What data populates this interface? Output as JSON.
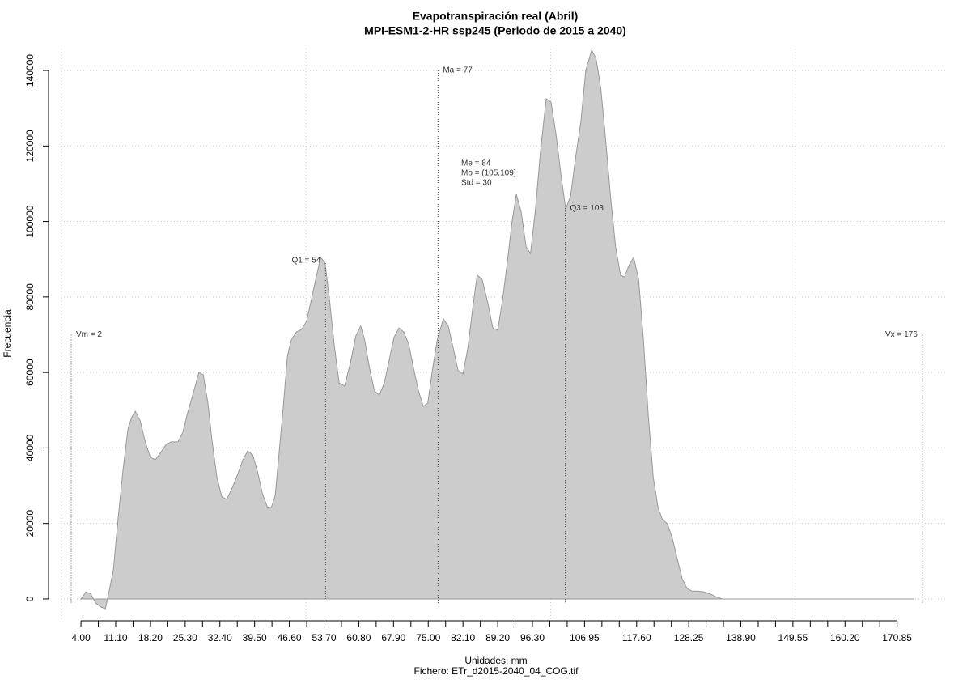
{
  "chart_data": {
    "type": "area",
    "title": "Evapotranspiración real (Abril)",
    "subtitle": "MPI-ESM1-2-HR ssp245 (Periodo de 2015 a 2040)",
    "x_label": "Unidades: mm",
    "caption": "Fichero: ETr_d2015-2040_04_COG.tif",
    "y_label": "Frecuencia",
    "color": "#cccccc",
    "stroke": "#999999",
    "xlim": [
      -2.3,
      181
    ],
    "ylim": [
      -5800,
      145800
    ],
    "yticks": [
      0,
      20000,
      40000,
      60000,
      80000,
      100000,
      120000,
      140000
    ],
    "xticks": [
      {
        "value": 4,
        "label": "4.00"
      },
      {
        "value": 11.1,
        "label": "11.10"
      },
      {
        "value": 18.2,
        "label": "18.20"
      },
      {
        "value": 25.3,
        "label": "25.30"
      },
      {
        "value": 32.4,
        "label": "32.40"
      },
      {
        "value": 39.5,
        "label": "39.50"
      },
      {
        "value": 46.6,
        "label": "46.60"
      },
      {
        "value": 53.7,
        "label": "53.70"
      },
      {
        "value": 60.8,
        "label": "60.80"
      },
      {
        "value": 67.9,
        "label": "67.90"
      },
      {
        "value": 75,
        "label": "75.00"
      },
      {
        "value": 82.1,
        "label": "82.10"
      },
      {
        "value": 89.2,
        "label": "89.20"
      },
      {
        "value": 96.3,
        "label": "96.30"
      },
      {
        "value": 106.95,
        "label": "106.95"
      },
      {
        "value": 117.6,
        "label": "117.60"
      },
      {
        "value": 128.25,
        "label": "128.25"
      },
      {
        "value": 138.9,
        "label": "138.90"
      },
      {
        "value": 149.55,
        "label": "149.55"
      },
      {
        "value": 160.2,
        "label": "160.20"
      },
      {
        "value": 170.85,
        "label": "170.85"
      }
    ],
    "xminorticks": [
      7.55,
      14.65,
      21.75,
      28.85,
      35.95,
      43.05,
      50.15,
      57.25,
      64.35,
      71.45,
      78.55,
      85.65,
      92.75,
      99.85,
      103.4,
      110.5,
      114.05,
      121.15,
      124.7,
      131.8,
      135.35,
      142.45,
      146,
      153.1,
      156.65,
      163.75,
      167.3
    ],
    "xgrid": [
      0,
      50,
      100,
      150
    ],
    "grid": true,
    "x": [
      4.0,
      5.0,
      6.0,
      7.0,
      8.0,
      9.0,
      9.6,
      10.6,
      11.6,
      12.6,
      13.6,
      14.4,
      15.1,
      16.1,
      17.1,
      18.2,
      19.2,
      20.2,
      21.4,
      22.5,
      23.8,
      24.8,
      25.8,
      27.2,
      28.1,
      29.0,
      30.0,
      30.8,
      31.8,
      32.8,
      33.8,
      34.9,
      36.1,
      37.1,
      38.1,
      39.1,
      40.1,
      41.1,
      42.1,
      42.9,
      43.7,
      44.5,
      45.4,
      46.2,
      47.0,
      48.0,
      49.1,
      50.1,
      51.1,
      52.0,
      53.0,
      53.9,
      54.8,
      55.8,
      56.8,
      57.9,
      59.1,
      60.2,
      61.2,
      62.0,
      63.0,
      64.0,
      65.0,
      66.0,
      67.0,
      68.0,
      69.0,
      70.0,
      71.0,
      72.0,
      73.0,
      74.0,
      74.9,
      75.9,
      76.9,
      78.1,
      79.1,
      80.1,
      81.1,
      82.1,
      83.1,
      84.1,
      85.0,
      86.0,
      87.2,
      88.2,
      89.2,
      90.2,
      91.2,
      92.1,
      93.0,
      94.0,
      95.0,
      95.9,
      96.9,
      97.9,
      99.1,
      100.1,
      101.1,
      102.1,
      103.1,
      104.1,
      105.0,
      106.2,
      107.2,
      108.4,
      109.3,
      110.3,
      111.3,
      112.3,
      113.3,
      114.3,
      115.1,
      116.0,
      117.0,
      118.0,
      119.0,
      120.0,
      121.0,
      122.0,
      122.9,
      123.9,
      124.9,
      125.9,
      126.9,
      127.9,
      128.9,
      130.0,
      131.3,
      132.7,
      133.8,
      135.1,
      141.3,
      174.3
    ],
    "values": [
      0,
      1900,
      1300,
      -1100,
      -2100,
      -2600,
      1100,
      7500,
      21400,
      34300,
      45000,
      48200,
      49700,
      47200,
      41800,
      37500,
      36900,
      38600,
      40900,
      41600,
      41600,
      44000,
      49300,
      55700,
      60000,
      59400,
      51500,
      41800,
      32200,
      27000,
      26400,
      29400,
      33200,
      36900,
      39200,
      38200,
      33700,
      27900,
      24400,
      24200,
      27400,
      38600,
      51500,
      64300,
      68600,
      70700,
      71400,
      73500,
      79300,
      84700,
      90500,
      89000,
      79300,
      67000,
      57200,
      56400,
      62600,
      69700,
      72300,
      68600,
      61100,
      55100,
      54000,
      57200,
      63200,
      69300,
      71800,
      70700,
      67500,
      61100,
      55100,
      51000,
      51900,
      61100,
      69000,
      74200,
      72300,
      66500,
      60500,
      59600,
      66500,
      77200,
      85800,
      84700,
      78300,
      71800,
      71200,
      79300,
      89600,
      99700,
      107200,
      102500,
      93300,
      91500,
      102900,
      117900,
      132500,
      131600,
      123300,
      112600,
      103300,
      106800,
      115800,
      126500,
      140000,
      145400,
      143200,
      135100,
      121100,
      106100,
      93300,
      85800,
      85300,
      88300,
      90500,
      84700,
      68600,
      48200,
      32200,
      24000,
      21000,
      19900,
      16100,
      10700,
      5400,
      2800,
      2100,
      2100,
      1900,
      1300,
      600,
      0,
      0,
      0
    ],
    "vlines": [
      {
        "x": 2,
        "top": 70000,
        "label": "Vm = 2",
        "side": "right"
      },
      {
        "x": 54,
        "top": 89600,
        "label": "Q1 = 54",
        "side": "left"
      },
      {
        "x": 77,
        "top": 140000,
        "label": "Ma = 77",
        "side": "right"
      },
      {
        "x": 103,
        "top": 103500,
        "label": "Q3 = 103",
        "side": "right"
      },
      {
        "x": 176,
        "top": 70000,
        "label": "Vx = 176",
        "side": "left"
      }
    ],
    "stats": [
      "Me = 84",
      "Mo = (105,109]",
      "Std = 30"
    ]
  }
}
